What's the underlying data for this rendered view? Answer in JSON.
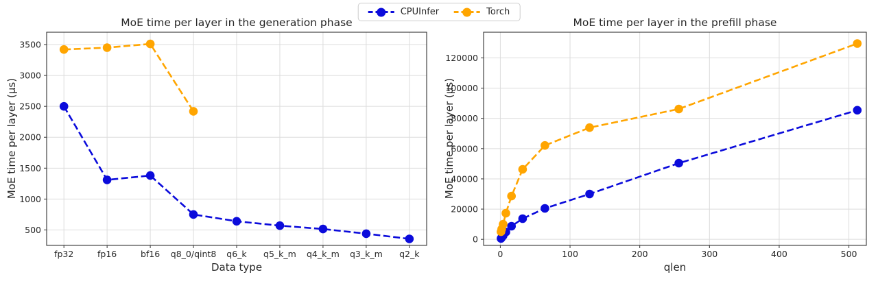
{
  "legend": {
    "items": [
      {
        "label": "CPUInfer",
        "color": "#0b0bdb"
      },
      {
        "label": "Torch",
        "color": "#ffa500"
      }
    ]
  },
  "chart_data": [
    {
      "type": "line",
      "title": "MoE time per layer in the generation phase",
      "xlabel": "Data type",
      "ylabel": "MoE time per layer (μs)",
      "categories": [
        "fp32",
        "fp16",
        "bf16",
        "q8_0/qint8",
        "q6_k",
        "q5_k_m",
        "q4_k_m",
        "q3_k_m",
        "q2_k"
      ],
      "yticks": [
        500,
        1000,
        1500,
        2000,
        2500,
        3000,
        3500
      ],
      "ylim": [
        250,
        3700
      ],
      "grid": true,
      "line_style": "dashed",
      "marker": "circle",
      "legend_position": "figure-top-center",
      "series": [
        {
          "name": "CPUInfer",
          "color": "#0b0bdb",
          "values": [
            2500,
            1310,
            1380,
            750,
            640,
            570,
            515,
            440,
            355
          ]
        },
        {
          "name": "Torch",
          "color": "#ffa500",
          "values": [
            3420,
            3450,
            3510,
            2420,
            null,
            null,
            null,
            null,
            null
          ]
        }
      ]
    },
    {
      "type": "line",
      "title": "MoE time per layer in the prefill phase",
      "xlabel": "qlen",
      "ylabel": "MoE time per layer (μs)",
      "x": [
        1,
        2,
        4,
        8,
        16,
        32,
        64,
        128,
        256,
        512
      ],
      "xticks": [
        0,
        100,
        200,
        300,
        400,
        500
      ],
      "xlim": [
        -24,
        525
      ],
      "yticks": [
        0,
        20000,
        40000,
        60000,
        80000,
        100000,
        120000
      ],
      "ylim": [
        -4000,
        137000
      ],
      "grid": true,
      "line_style": "dashed",
      "marker": "circle",
      "legend_position": "figure-top-center",
      "series": [
        {
          "name": "CPUInfer",
          "color": "#0b0bdb",
          "values": [
            600,
            1200,
            2400,
            4800,
            8700,
            13700,
            20500,
            30000,
            50400,
            85400
          ]
        },
        {
          "name": "Torch",
          "color": "#ffa500",
          "values": [
            5000,
            6800,
            10000,
            17300,
            28600,
            46300,
            62100,
            73900,
            86200,
            129500
          ]
        }
      ]
    }
  ]
}
